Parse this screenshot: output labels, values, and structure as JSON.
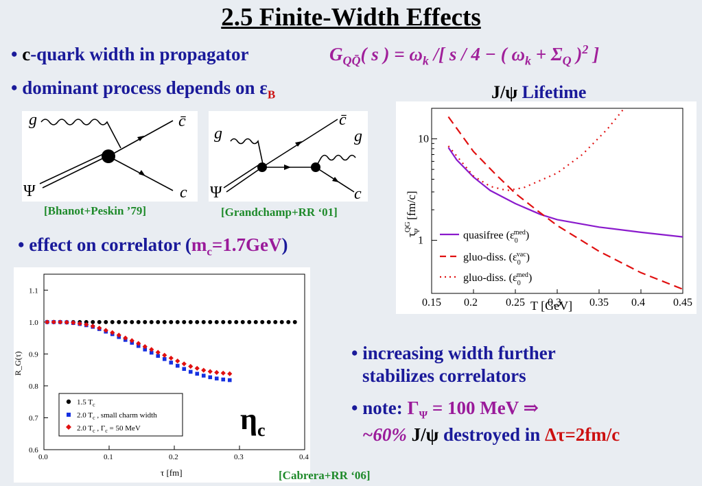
{
  "title": "2.5 Finite-Width Effects",
  "bullets": {
    "b1_dot": "•",
    "b1_c": "c",
    "b1_rest": "-quark width in propagator",
    "b2": "• dominant process depends on ε",
    "b2_sub": "B",
    "b3_pre": "• effect on correlator (",
    "b3_m": "m",
    "b3_sub": "c",
    "b3_val": "=1.7GeV",
    "b3_post": ")",
    "b4_line1": "• increasing width further",
    "b4_line2": "stabilizes correlators",
    "b5_pre": "• note:",
    "b5_gamma": "Γ",
    "b5_gsub": "Ψ",
    "b5_val": " = 100 MeV  ⇒",
    "b5_pct": "~60%",
    "b5_jpsi": " J/ψ",
    "b5_rest": " destroyed in ",
    "b5_dt": "Δτ=2fm/c"
  },
  "formula": {
    "G": "G",
    "sub": "QQ̄",
    "body": "( s ) = ω",
    "k1": "k",
    "mid": " /[ s / 4 − ( ω",
    "k2": "k",
    "plus": " + Σ",
    "Q": "Q",
    "close": " )",
    "pow": "2",
    "end": " ]"
  },
  "diagrams": {
    "left_g": "g",
    "left_cbar": "c̄",
    "left_psi": "Ψ",
    "left_c": "c",
    "left_cite": "[Bhanot+Peskin ’79]",
    "right_g1": "g",
    "right_cbar": "c̄",
    "right_g2": "g",
    "right_psi": "Ψ",
    "right_c": "c",
    "right_cite": "[Grandchamp+RR ‘01]"
  },
  "lifetime_title": "J/ψ Lifetime",
  "lifetime_title_jpsi": "J/ψ",
  "lifetime_title_rest": " Lifetime",
  "eta_label": "η",
  "eta_sub": "c",
  "cabrera_cite": "[Cabrera+RR ‘06]",
  "colors": {
    "blue": "#1a1a9a",
    "magenta": "#9a1a9a",
    "red": "#cc1010",
    "green": "#1e8a2a",
    "purple": "#8a1acc"
  },
  "chart_data": [
    {
      "type": "line",
      "ylabel": "τ_Ψ^QG [fm/c]",
      "xlabel": "T [GeV]",
      "xlim": [
        0.15,
        0.45
      ],
      "ylim": [
        0.3,
        20
      ],
      "yscale": "log",
      "x_ticks": [
        "0.15",
        "0.2",
        "0.25",
        "0.3",
        "0.35",
        "0.4",
        "0.45"
      ],
      "y_ticks": [
        "1",
        "10"
      ],
      "legend_position": "lower-left",
      "series": [
        {
          "name": "quasifree (ε0 med)",
          "style": "solid",
          "color": "#8a1acc",
          "x": [
            0.17,
            0.18,
            0.2,
            0.22,
            0.25,
            0.28,
            0.3,
            0.35,
            0.4,
            0.45
          ],
          "y": [
            8.2,
            6.2,
            4.2,
            3.1,
            2.3,
            1.8,
            1.6,
            1.35,
            1.2,
            1.08
          ]
        },
        {
          "name": "gluo-diss. (ε0 vac)",
          "style": "dashed",
          "color": "#e01010",
          "x": [
            0.17,
            0.2,
            0.225,
            0.25,
            0.275,
            0.3,
            0.35,
            0.4,
            0.45
          ],
          "y": [
            16.5,
            7.5,
            4.6,
            2.9,
            2.0,
            1.4,
            0.78,
            0.48,
            0.33
          ]
        },
        {
          "name": "gluo-diss. (ε0 med)",
          "style": "dotted",
          "color": "#e01010",
          "x": [
            0.17,
            0.2,
            0.22,
            0.24,
            0.26,
            0.3,
            0.33,
            0.36,
            0.38
          ],
          "y": [
            8.5,
            4.3,
            3.4,
            3.1,
            3.3,
            4.6,
            7.0,
            12.5,
            20
          ]
        }
      ],
      "legend": {
        "l1_name": "quasifree (ε",
        "l1_sup": "med",
        "l1_sub": "0",
        "l2_name": "gluo-diss. (ε",
        "l2_sup": "vac",
        "l2_sub": "0",
        "l3_name": "gluo-diss. (ε",
        "l3_sup": "med",
        "l3_sub": "0",
        "close": ")"
      }
    },
    {
      "type": "scatter",
      "ylabel": "R_G(τ)",
      "xlabel": "τ [fm]",
      "xlim": [
        0.0,
        0.4
      ],
      "ylim": [
        0.6,
        1.15
      ],
      "x_ticks": [
        "0.0",
        "0.1",
        "0.2",
        "0.3",
        "0.4"
      ],
      "y_ticks": [
        "0.6",
        "0.7",
        "0.8",
        "0.9",
        "1.0",
        "1.1"
      ],
      "legend_position": "lower-left",
      "series": [
        {
          "name": "1.5 T_c",
          "marker": "circle",
          "color": "#000000",
          "x": [
            0.005,
            0.015,
            0.025,
            0.035,
            0.045,
            0.055,
            0.065,
            0.075,
            0.085,
            0.095,
            0.105,
            0.115,
            0.125,
            0.135,
            0.145,
            0.155,
            0.165,
            0.175,
            0.185,
            0.195,
            0.205,
            0.215,
            0.225,
            0.235,
            0.245,
            0.255,
            0.265,
            0.275,
            0.285,
            0.295,
            0.305,
            0.315,
            0.325,
            0.335,
            0.345,
            0.355,
            0.365,
            0.375,
            0.385
          ],
          "y": [
            1,
            1,
            1,
            1,
            1,
            1,
            1,
            1,
            1,
            1,
            1,
            1,
            1,
            1,
            1,
            1,
            1,
            1,
            1,
            1,
            1,
            1,
            1,
            1,
            1,
            1,
            1,
            1,
            1,
            1,
            1,
            1,
            1,
            1,
            1,
            1,
            1,
            1,
            1
          ]
        },
        {
          "name": "2.0 T_c, small charm width",
          "marker": "square",
          "color": "#1530e0",
          "x": [
            0.005,
            0.015,
            0.025,
            0.035,
            0.045,
            0.055,
            0.065,
            0.075,
            0.085,
            0.095,
            0.105,
            0.115,
            0.125,
            0.135,
            0.145,
            0.155,
            0.165,
            0.175,
            0.185,
            0.195,
            0.205,
            0.215,
            0.225,
            0.235,
            0.245,
            0.255,
            0.265,
            0.275,
            0.285
          ],
          "y": [
            1.0,
            1.0,
            1.0,
            0.999,
            0.997,
            0.994,
            0.99,
            0.985,
            0.978,
            0.97,
            0.962,
            0.953,
            0.944,
            0.935,
            0.925,
            0.914,
            0.904,
            0.894,
            0.884,
            0.873,
            0.863,
            0.853,
            0.844,
            0.838,
            0.832,
            0.827,
            0.823,
            0.82,
            0.818
          ]
        },
        {
          "name": "2.0 T_c, Γ_c = 50 MeV",
          "marker": "diamond",
          "color": "#e01010",
          "x": [
            0.005,
            0.015,
            0.025,
            0.035,
            0.045,
            0.055,
            0.065,
            0.075,
            0.085,
            0.095,
            0.105,
            0.115,
            0.125,
            0.135,
            0.145,
            0.155,
            0.165,
            0.175,
            0.185,
            0.195,
            0.205,
            0.215,
            0.225,
            0.235,
            0.245,
            0.255,
            0.265,
            0.275,
            0.285
          ],
          "y": [
            1.0,
            1.0,
            1.0,
            0.999,
            0.998,
            0.995,
            0.992,
            0.987,
            0.981,
            0.974,
            0.967,
            0.959,
            0.95,
            0.942,
            0.933,
            0.923,
            0.914,
            0.905,
            0.896,
            0.887,
            0.878,
            0.869,
            0.861,
            0.855,
            0.849,
            0.845,
            0.842,
            0.84,
            0.838
          ]
        }
      ],
      "legend": {
        "l1": "1.5 T",
        "l1_sub": "c",
        "l2": "2.0 T",
        "l2_sub": "c",
        "l2_rest": " , small charm width",
        "l3": "2.0 T",
        "l3_sub": "c",
        "l3_mid": " , Γ",
        "l3_sub2": "c",
        "l3_rest": " = 50 MeV"
      }
    }
  ]
}
